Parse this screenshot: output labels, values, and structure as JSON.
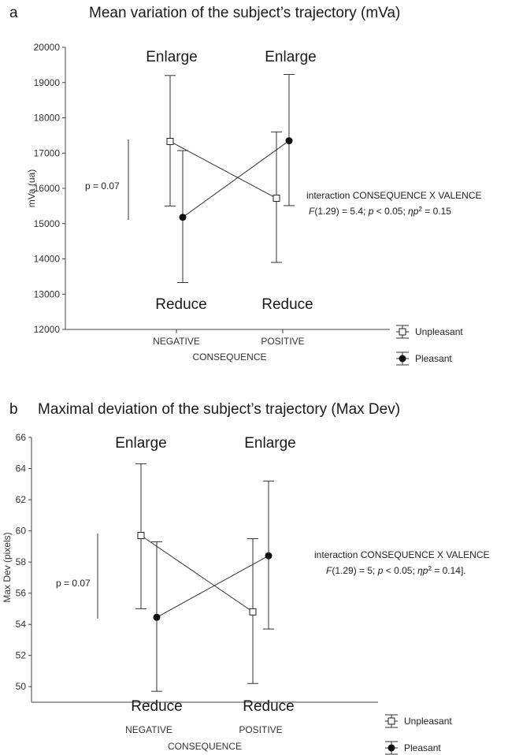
{
  "chart_data": [
    {
      "type": "line",
      "panel": "a",
      "title": "Mean variation of the subject’s trajectory (mVa)",
      "ylabel": "mVa (ua)",
      "xlabel": "CONSEQUENCE",
      "categories": [
        "NEGATIVE",
        "POSITIVE"
      ],
      "ylim": [
        12000,
        20000
      ],
      "yticks": [
        12000,
        13000,
        14000,
        15000,
        16000,
        17000,
        18000,
        19000,
        20000
      ],
      "series": [
        {
          "name": "Unpleasant",
          "values": [
            17330,
            15720
          ],
          "err_low": [
            15500,
            13900
          ],
          "err_high": [
            19200,
            17600
          ],
          "marker": "open-square"
        },
        {
          "name": "Pleasant",
          "values": [
            15180,
            17350
          ],
          "err_low": [
            13330,
            15510
          ],
          "err_high": [
            17070,
            19230
          ],
          "marker": "filled-circle"
        }
      ],
      "annotations": {
        "enlarge_label": "Enlarge",
        "reduce_label": "Reduce",
        "p_value": "p = 0.07",
        "interaction_line1": "interaction CONSEQUENCE X VALENCE",
        "stat_F": "F",
        "stat_df_value": "(1.29) = 5.4; ",
        "stat_p": "p",
        "stat_p_value": " < 0.05; ",
        "stat_eta": "ηp",
        "stat_sup": "2",
        "stat_eta_value": " = 0.15"
      }
    },
    {
      "type": "line",
      "panel": "b",
      "title": "Maximal deviation of the subject’s trajectory (Max Dev)",
      "ylabel": "Max Dev (pixels)",
      "xlabel": "CONSEQUENCE",
      "categories": [
        "NEGATIVE",
        "POSITIVE"
      ],
      "ylim": [
        49,
        66
      ],
      "yticks": [
        50,
        52,
        54,
        56,
        58,
        60,
        62,
        64,
        66
      ],
      "series": [
        {
          "name": "Unpleasant",
          "values": [
            59.7,
            54.8
          ],
          "err_low": [
            55.0,
            50.2
          ],
          "err_high": [
            64.3,
            59.5
          ],
          "marker": "open-square"
        },
        {
          "name": "Pleasant",
          "values": [
            54.45,
            58.4
          ],
          "err_low": [
            49.7,
            53.7
          ],
          "err_high": [
            59.3,
            63.2
          ],
          "marker": "filled-circle"
        }
      ],
      "annotations": {
        "enlarge_label": "Enlarge",
        "reduce_label": "Reduce",
        "p_value": "p = 0.07",
        "interaction_line1": "interaction CONSEQUENCE X VALENCE",
        "stat_F": "F",
        "stat_df_value": "(1.29) = 5; ",
        "stat_p": "p",
        "stat_p_value": " < 0.05; ",
        "stat_eta": "ηp",
        "stat_sup": "2",
        "stat_eta_value": " = 0.14]."
      }
    }
  ]
}
